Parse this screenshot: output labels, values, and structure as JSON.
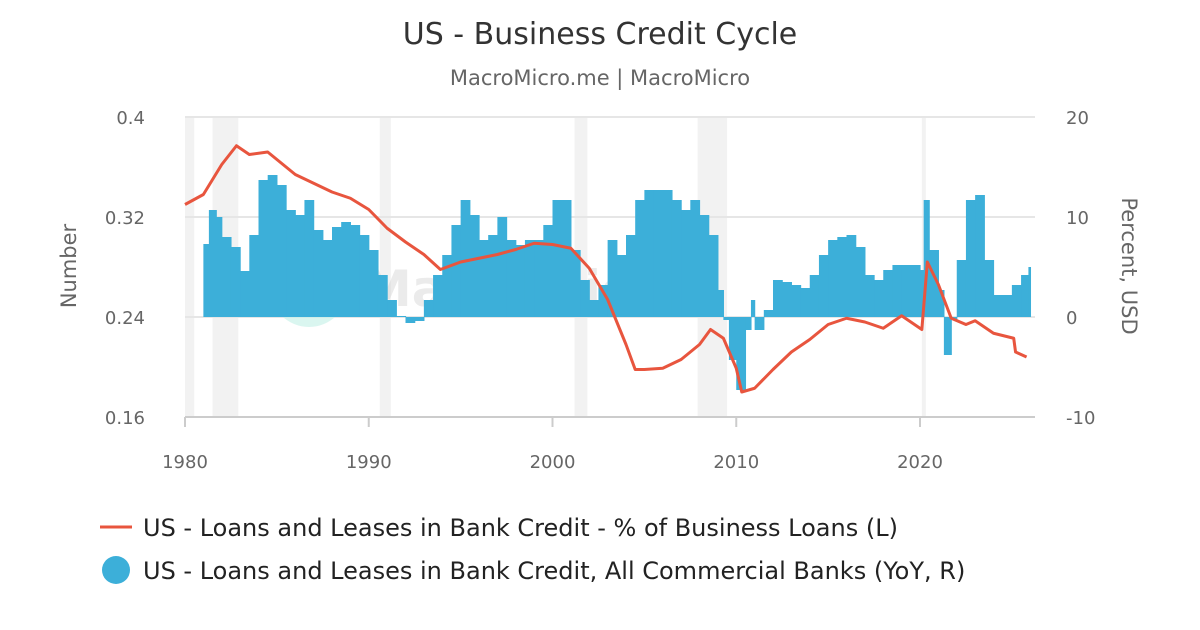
{
  "chart_data": {
    "type": "line+bar",
    "title": "US - Business Credit Cycle",
    "subtitle": "MacroMicro.me | MacroMicro",
    "watermark": "MacroMicro",
    "xlim": [
      1980,
      2026
    ],
    "x_ticks": [
      "1980",
      "1990",
      "2000",
      "2010",
      "2020"
    ],
    "y_left": {
      "label": "Number",
      "lim": [
        0.16,
        0.4
      ],
      "ticks": [
        "0.4",
        "0.32",
        "0.24",
        "0.16"
      ]
    },
    "y_right": {
      "label": "Percent, USD",
      "lim": [
        -10,
        20
      ],
      "ticks": [
        "20",
        "10",
        "0",
        "-10"
      ]
    },
    "grid": true,
    "legend_placement": "bottom",
    "recessions": [
      [
        1980.0,
        1980.5
      ],
      [
        1981.5,
        1982.9
      ],
      [
        1990.6,
        1991.2
      ],
      [
        2001.2,
        2001.9
      ],
      [
        2007.9,
        2009.5
      ],
      [
        2020.1,
        2020.3
      ]
    ],
    "series": [
      {
        "name": "US - Loans and Leases in Bank Credit - % of Business Loans (L)",
        "kind": "line",
        "axis": "left",
        "color": "#e8553e",
        "x": [
          1980,
          1981,
          1982,
          1982.8,
          1983.5,
          1984.5,
          1986,
          1987,
          1988,
          1989,
          1990,
          1991,
          1992,
          1993,
          1993.9,
          1995,
          1996,
          1997,
          1998,
          1999,
          2000,
          2001,
          2002,
          2003,
          2004,
          2004.5,
          2005,
          2006,
          2007,
          2008,
          2008.6,
          2009.3,
          2010,
          2010.3,
          2011,
          2012,
          2013,
          2014,
          2015,
          2016,
          2017,
          2018,
          2019,
          2020.1,
          2020.4,
          2021,
          2021.7,
          2022.5,
          2023,
          2024,
          2025.1,
          2025.2,
          2025.8
        ],
        "y": [
          0.33,
          0.338,
          0.362,
          0.377,
          0.37,
          0.372,
          0.354,
          0.347,
          0.34,
          0.335,
          0.326,
          0.311,
          0.3,
          0.29,
          0.278,
          0.284,
          0.287,
          0.29,
          0.294,
          0.299,
          0.298,
          0.295,
          0.279,
          0.254,
          0.218,
          0.198,
          0.198,
          0.199,
          0.206,
          0.218,
          0.23,
          0.223,
          0.199,
          0.18,
          0.183,
          0.198,
          0.212,
          0.222,
          0.234,
          0.239,
          0.236,
          0.231,
          0.241,
          0.23,
          0.284,
          0.266,
          0.239,
          0.234,
          0.237,
          0.227,
          0.223,
          0.212,
          0.208
        ]
      },
      {
        "name": "US - Loans and Leases in Bank Credit, All Commercial Banks (YoY, R)",
        "kind": "bar",
        "axis": "right",
        "color": "#3cafd9",
        "x": [
          1981,
          1981.3,
          1981.7,
          1982,
          1982.5,
          1983,
          1983.5,
          1984,
          1984.5,
          1985,
          1985.5,
          1986,
          1986.5,
          1987,
          1987.5,
          1988,
          1988.5,
          1989,
          1989.5,
          1990,
          1990.5,
          1991,
          1991.5,
          1992,
          1992.5,
          1993,
          1993.5,
          1994,
          1994.5,
          1995,
          1995.5,
          1996,
          1996.5,
          1997,
          1997.5,
          1998,
          1998.5,
          1999,
          1999.5,
          2000,
          2000.5,
          2001,
          2001.5,
          2002,
          2002.5,
          2003,
          2003.5,
          2004,
          2004.5,
          2005,
          2005.5,
          2006,
          2006.5,
          2007,
          2007.5,
          2008,
          2008.5,
          2009,
          2009.3,
          2009.6,
          2010,
          2010.5,
          2010.8,
          2011,
          2011.5,
          2012,
          2012.5,
          2013,
          2013.5,
          2014,
          2014.5,
          2015,
          2015.5,
          2016,
          2016.5,
          2017,
          2017.5,
          2018,
          2018.5,
          2019,
          2019.5,
          2020,
          2020.2,
          2020.5,
          2021,
          2021.3,
          2021.7,
          2022,
          2022.5,
          2023,
          2023.5,
          2024,
          2024.5,
          2025,
          2025.5,
          2025.9
        ],
        "y": [
          7.3,
          10.7,
          10,
          8,
          7,
          4.6,
          8.2,
          13.7,
          14.2,
          13.2,
          10.7,
          10.2,
          11.7,
          8.7,
          7.7,
          9,
          9.5,
          9.2,
          8.2,
          6.7,
          4.2,
          1.7,
          0.1,
          -0.6,
          -0.4,
          1.7,
          4.2,
          6.2,
          9.2,
          11.7,
          10.2,
          7.7,
          8.2,
          10,
          7.7,
          7.2,
          7.7,
          7.7,
          9.2,
          11.7,
          11.7,
          6.7,
          3.7,
          1.7,
          3.2,
          7.7,
          6.2,
          8.2,
          11.7,
          12.7,
          12.7,
          12.7,
          11.7,
          10.7,
          11.7,
          10.2,
          8.2,
          2.7,
          -0.3,
          -4.3,
          -7.3,
          -1.3,
          1.7,
          -1.3,
          0.7,
          3.7,
          3.5,
          3.2,
          2.9,
          4.2,
          6.2,
          7.7,
          8,
          8.2,
          7,
          4.2,
          3.7,
          4.7,
          5.2,
          5.2,
          5.2,
          4.7,
          11.7,
          6.7,
          2.7,
          -3.8,
          -0.3,
          5.7,
          11.7,
          12.2,
          5.7,
          2.2,
          2.2,
          3.2,
          4.2,
          5
        ]
      }
    ]
  }
}
